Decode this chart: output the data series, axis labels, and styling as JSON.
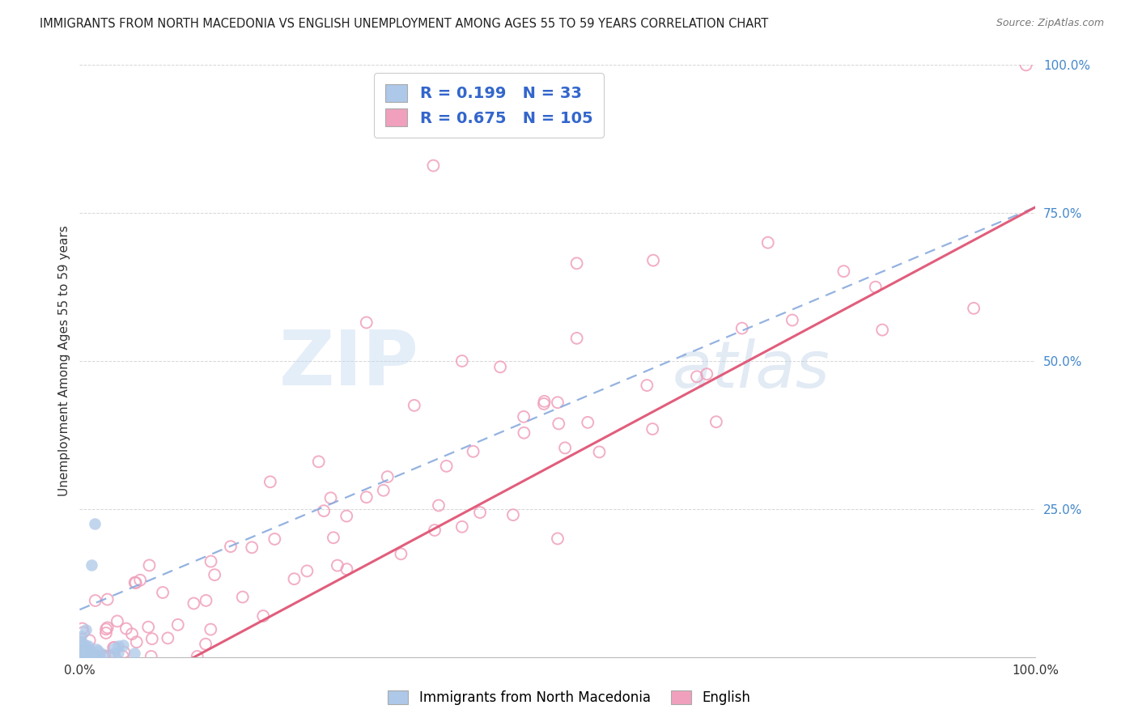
{
  "title": "IMMIGRANTS FROM NORTH MACEDONIA VS ENGLISH UNEMPLOYMENT AMONG AGES 55 TO 59 YEARS CORRELATION CHART",
  "source": "Source: ZipAtlas.com",
  "ylabel": "Unemployment Among Ages 55 to 59 years",
  "xlim": [
    0,
    1
  ],
  "ylim": [
    0,
    1
  ],
  "blue_R": 0.199,
  "blue_N": 33,
  "pink_R": 0.675,
  "pink_N": 105,
  "blue_color": "#adc8e8",
  "pink_color": "#f0a0bc",
  "blue_line_color": "#88aadd",
  "pink_line_color": "#e05575",
  "legend_label_blue": "Immigrants from North Macedonia",
  "legend_label_pink": "English",
  "background_color": "#ffffff",
  "blue_line_x0": 0.0,
  "blue_line_y0": 0.08,
  "blue_line_x1": 1.0,
  "blue_line_y1": 0.76,
  "pink_line_x0": 0.12,
  "pink_line_y0": 0.0,
  "pink_line_x1": 1.0,
  "pink_line_y1": 0.76
}
